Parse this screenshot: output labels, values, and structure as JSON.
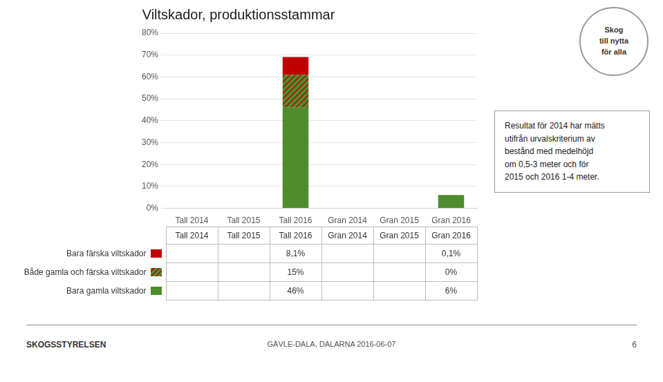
{
  "chart_data": {
    "type": "bar",
    "title": "Viltskador, produktionsstammar",
    "categories": [
      "Tall 2014",
      "Tall 2015",
      "Tall 2016",
      "Gran 2014",
      "Gran 2015",
      "Gran 2016"
    ],
    "stacked": true,
    "grid": true,
    "series": [
      {
        "name": "Bara gamla viltskador",
        "color": "#4e8c2e",
        "values": [
          0,
          0,
          46,
          0,
          0,
          6
        ],
        "value_labels": [
          null,
          null,
          "46%",
          null,
          null,
          "6%"
        ]
      },
      {
        "name": "Både gamla och färska viltskador",
        "color": [
          "#4e8c2e",
          "#c00000"
        ],
        "values": [
          0,
          0,
          15,
          0,
          0,
          0
        ],
        "value_labels": [
          null,
          null,
          "15%",
          null,
          null,
          "0%"
        ]
      },
      {
        "name": "Bara färska viltskador",
        "color": "#c00000",
        "values": [
          0,
          0,
          8.1,
          0,
          0,
          0.1
        ],
        "value_labels": [
          null,
          null,
          "8,1%",
          null,
          null,
          "0,1%"
        ]
      }
    ],
    "ylim": [
      0,
      80
    ],
    "yticks": [
      {
        "value": 0,
        "label": "0%"
      },
      {
        "value": 10,
        "label": "10%"
      },
      {
        "value": 20,
        "label": "20%"
      },
      {
        "value": 30,
        "label": "30%"
      },
      {
        "value": 40,
        "label": "40%"
      },
      {
        "value": 50,
        "label": "50%"
      },
      {
        "value": 60,
        "label": "60%"
      },
      {
        "value": 70,
        "label": "70%"
      },
      {
        "value": 80,
        "label": "80%"
      }
    ],
    "annotations": [
      "Resultat för 2014 har mätts\nutifrån urvalskriterium av\nbestånd med medelhöjd\nom 0,5-3 meter och för\n2015 och 2016 1-4 meter.",
      "Skog\ntill nytta\nför alla",
      "SKOGSSTYRELSEN",
      "GÄVLE-DALA, DALARNA  2016-06-07",
      "6"
    ]
  }
}
